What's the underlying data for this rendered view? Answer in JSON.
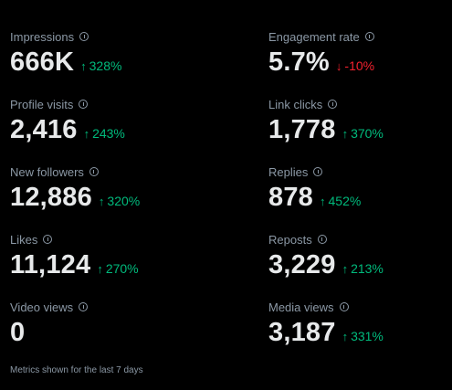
{
  "metrics": [
    {
      "label": "Impressions",
      "value": "666K",
      "change": "328%",
      "direction": "up"
    },
    {
      "label": "Engagement rate",
      "value": "5.7%",
      "change": "-10%",
      "direction": "down"
    },
    {
      "label": "Profile visits",
      "value": "2,416",
      "change": "243%",
      "direction": "up"
    },
    {
      "label": "Link clicks",
      "value": "1,778",
      "change": "370%",
      "direction": "up"
    },
    {
      "label": "New followers",
      "value": "12,886",
      "change": "320%",
      "direction": "up"
    },
    {
      "label": "Replies",
      "value": "878",
      "change": "452%",
      "direction": "up"
    },
    {
      "label": "Likes",
      "value": "11,124",
      "change": "270%",
      "direction": "up"
    },
    {
      "label": "Reposts",
      "value": "3,229",
      "change": "213%",
      "direction": "up"
    },
    {
      "label": "Video views",
      "value": "0",
      "change": "",
      "direction": "none"
    },
    {
      "label": "Media views",
      "value": "3,187",
      "change": "331%",
      "direction": "up"
    }
  ],
  "arrows": {
    "up": "↑",
    "down": "↓"
  },
  "footer": "Metrics shown for the last 7 days",
  "colors": {
    "background": "#000000",
    "text": "#e7e9ea",
    "muted": "#8b98a5",
    "positive": "#00ba7c",
    "negative": "#f4212e"
  },
  "icons": {
    "info": "info-circle-icon"
  }
}
